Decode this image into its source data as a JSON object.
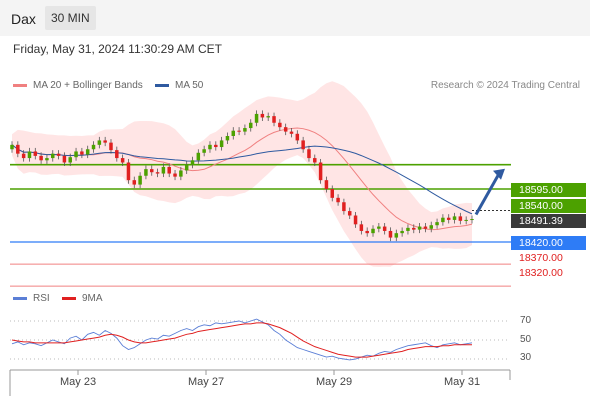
{
  "header": {
    "symbol": "Dax",
    "timeframe": "30 MIN"
  },
  "datetime": "Friday, May 31, 2024 11:30:29 AM CET",
  "legend": {
    "ma20": {
      "label": "MA 20 + Bollinger Bands",
      "color": "#f08080"
    },
    "ma50": {
      "label": "MA 50",
      "color": "#2f5aa0"
    }
  },
  "credit": "Research © 2024 Trading Central",
  "levels": {
    "r2": "18595.00",
    "r1": "18540.00",
    "last": "18491.39",
    "pivot": "18420.00",
    "s1": "18370.00",
    "s2": "18320.00"
  },
  "rsi_legend": {
    "rsi": "RSI",
    "ma": "9MA",
    "rsi_color": "#5b7fd6",
    "ma_color": "#e02020"
  },
  "rsi_ticks": [
    "70",
    "50",
    "30"
  ],
  "x_axis": [
    "May 23",
    "May 27",
    "May 29",
    "May 31"
  ],
  "colors": {
    "up": "#4ca100",
    "down": "#e02020",
    "resistance": "#4ca100",
    "pivot": "#2e7cf6",
    "support": "#f08080",
    "arrow": "#2f5aa0"
  },
  "chart_data": {
    "type": "candlestick",
    "y_range": [
      18300,
      18720
    ],
    "levels": [
      18595,
      18540,
      18420,
      18370,
      18320
    ],
    "last_price": 18491.39,
    "closes": [
      18640,
      18620,
      18610,
      18625,
      18615,
      18605,
      18610,
      18620,
      18615,
      18600,
      18612,
      18625,
      18618,
      18630,
      18640,
      18650,
      18645,
      18628,
      18610,
      18600,
      18560,
      18550,
      18570,
      18585,
      18578,
      18575,
      18590,
      18575,
      18568,
      18582,
      18595,
      18605,
      18622,
      18630,
      18640,
      18635,
      18650,
      18660,
      18672,
      18670,
      18678,
      18690,
      18710,
      18702,
      18705,
      18690,
      18680,
      18670,
      18665,
      18650,
      18630,
      18610,
      18600,
      18560,
      18540,
      18520,
      18510,
      18490,
      18480,
      18460,
      18445,
      18440,
      18450,
      18455,
      18445,
      18430,
      18440,
      18445,
      18452,
      18448,
      18455,
      18450,
      18458,
      18465,
      18475,
      18470,
      18478,
      18468,
      18470,
      18472
    ],
    "rsi": [
      46,
      48,
      45,
      47,
      46,
      44,
      47,
      50,
      48,
      46,
      52,
      54,
      50,
      56,
      58,
      55,
      60,
      57,
      52,
      44,
      40,
      42,
      46,
      50,
      52,
      51,
      55,
      54,
      57,
      60,
      62,
      60,
      64,
      66,
      65,
      68,
      67,
      68,
      69,
      70,
      68,
      70,
      72,
      69,
      66,
      60,
      56,
      50,
      46,
      42,
      40,
      38,
      36,
      34,
      32,
      33,
      31,
      30,
      29,
      30,
      32,
      34,
      33,
      36,
      38,
      37,
      40,
      42,
      44,
      45,
      46,
      47,
      44,
      42,
      45,
      46,
      47,
      45,
      46,
      47
    ],
    "rsi_ma": [
      50,
      49,
      48,
      48,
      47,
      47,
      47,
      47,
      47,
      47,
      48,
      49,
      50,
      51,
      52,
      53,
      55,
      56,
      55,
      53,
      50,
      48,
      47,
      47,
      48,
      49,
      50,
      51,
      52,
      54,
      56,
      57,
      59,
      60,
      61,
      62,
      63,
      64,
      65,
      66,
      67,
      67,
      68,
      68,
      67,
      65,
      63,
      60,
      57,
      53,
      49,
      46,
      43,
      41,
      39,
      37,
      35,
      34,
      33,
      32,
      32,
      32,
      33,
      34,
      35,
      36,
      37,
      38,
      40,
      41,
      42,
      43,
      43,
      43,
      44,
      44,
      45,
      45,
      45,
      45
    ],
    "x_ticks": [
      "May 23",
      "May 27",
      "May 29",
      "May 31"
    ]
  }
}
